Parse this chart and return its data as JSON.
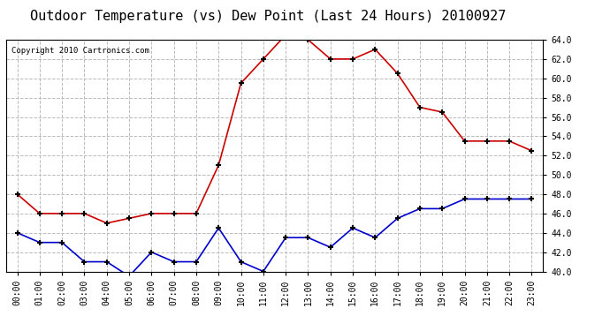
{
  "title": "Outdoor Temperature (vs) Dew Point (Last 24 Hours) 20100927",
  "copyright_text": "Copyright 2010 Cartronics.com",
  "hours": [
    "00:00",
    "01:00",
    "02:00",
    "03:00",
    "04:00",
    "05:00",
    "06:00",
    "07:00",
    "08:00",
    "09:00",
    "10:00",
    "11:00",
    "12:00",
    "13:00",
    "14:00",
    "15:00",
    "16:00",
    "17:00",
    "18:00",
    "19:00",
    "20:00",
    "21:00",
    "22:00",
    "23:00"
  ],
  "temp": [
    48.0,
    46.0,
    46.0,
    46.0,
    45.0,
    45.5,
    46.0,
    46.0,
    46.0,
    51.0,
    59.5,
    62.0,
    64.5,
    64.0,
    62.0,
    62.0,
    63.0,
    60.5,
    57.0,
    56.5,
    53.5,
    53.5,
    53.5,
    52.5
  ],
  "dew": [
    44.0,
    43.0,
    43.0,
    41.0,
    41.0,
    39.5,
    42.0,
    41.0,
    41.0,
    44.5,
    41.0,
    40.0,
    43.5,
    43.5,
    42.5,
    44.5,
    43.5,
    45.5,
    46.5,
    46.5,
    47.5,
    47.5,
    47.5,
    47.5
  ],
  "temp_color": "#cc0000",
  "dew_color": "#0000cc",
  "marker": "+",
  "marker_color": "#000000",
  "bg_color": "#ffffff",
  "plot_bg_color": "#ffffff",
  "grid_color": "#bbbbbb",
  "ylim": [
    40.0,
    64.0
  ],
  "ytick_step": 2.0,
  "title_fontsize": 11,
  "tick_fontsize": 7,
  "copyright_fontsize": 6.5
}
